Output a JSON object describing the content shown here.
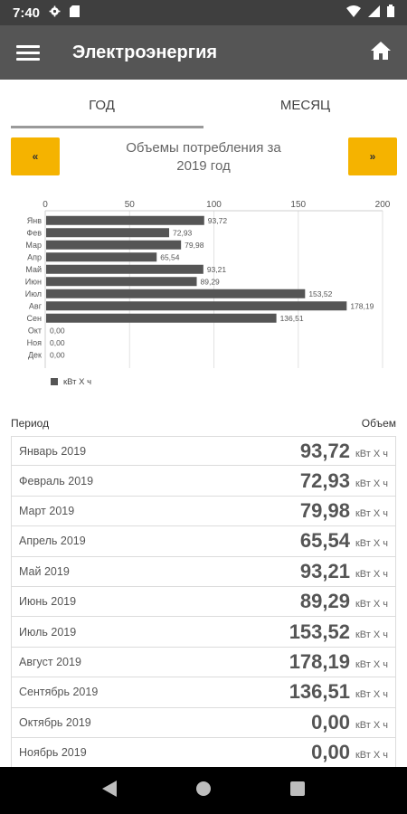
{
  "status_bar": {
    "time": "7:40",
    "icons": [
      "gear-icon",
      "sd-card-icon",
      "wifi-icon",
      "signal-icon",
      "battery-icon"
    ]
  },
  "app_bar": {
    "title": "Электроэнергия",
    "menu_icon": "hamburger-menu-icon",
    "home_icon": "home-icon"
  },
  "tabs": [
    {
      "label": "ГОД",
      "active": true
    },
    {
      "label": "МЕСЯЦ",
      "active": false
    }
  ],
  "chart_nav": {
    "prev_label": "«",
    "next_label": "»",
    "title_line1": "Объемы потребления за",
    "title_line2": "2019 год"
  },
  "chart_data": {
    "type": "bar",
    "orientation": "horizontal",
    "categories": [
      "Янв",
      "Фев",
      "Мар",
      "Апр",
      "Май",
      "Июн",
      "Июл",
      "Авг",
      "Сен",
      "Окт",
      "Ноя",
      "Дек"
    ],
    "values": [
      93.72,
      72.93,
      79.98,
      65.54,
      93.21,
      89.29,
      153.52,
      178.19,
      136.51,
      0.0,
      0.0,
      0.0
    ],
    "value_labels": [
      "93,72",
      "72,93",
      "79,98",
      "65,54",
      "93,21",
      "89,29",
      "153,52",
      "178,19",
      "136,51",
      "0,00",
      "0,00",
      "0,00"
    ],
    "xlim": [
      0,
      200
    ],
    "x_ticks": [
      0,
      50,
      100,
      150,
      200
    ],
    "legend": "кВт Х ч",
    "legend_position": "bottom-left",
    "grid": true,
    "bar_color": "#555555"
  },
  "table": {
    "header_period": "Период",
    "header_volume": "Объем",
    "unit": "кВт Х ч",
    "rows": [
      {
        "period": "Январь 2019",
        "value": "93,72"
      },
      {
        "period": "Февраль 2019",
        "value": "72,93"
      },
      {
        "period": "Март 2019",
        "value": "79,98"
      },
      {
        "period": "Апрель 2019",
        "value": "65,54"
      },
      {
        "period": "Май 2019",
        "value": "93,21"
      },
      {
        "period": "Июнь 2019",
        "value": "89,29"
      },
      {
        "period": "Июль 2019",
        "value": "153,52"
      },
      {
        "period": "Август 2019",
        "value": "178,19"
      },
      {
        "period": "Сентябрь 2019",
        "value": "136,51"
      },
      {
        "period": "Октябрь 2019",
        "value": "0,00"
      },
      {
        "period": "Ноябрь 2019",
        "value": "0,00"
      }
    ]
  },
  "nav_bar": {
    "back_icon": "back-triangle-icon",
    "home_icon": "home-circle-icon",
    "recents_icon": "recents-square-icon"
  },
  "colors": {
    "app_bar": "#555555",
    "status_bar": "#3f3f3f",
    "accent": "#f5b300",
    "bar": "#555555"
  }
}
